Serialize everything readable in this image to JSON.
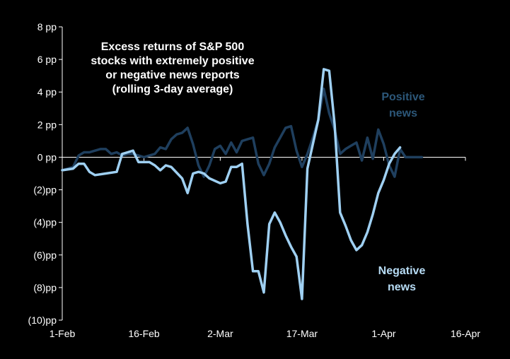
{
  "chart_data": {
    "type": "line",
    "title": [
      "Excess returns of S&P 500",
      "stocks with extremely positive",
      "or negative news reports",
      "(rolling 3-day average)"
    ],
    "xlabel": "",
    "ylabel": "",
    "x_ticks": [
      "1-Feb",
      "16-Feb",
      "2-Mar",
      "17-Mar",
      "1-Apr",
      "16-Apr"
    ],
    "x_tick_days": [
      0,
      15,
      29,
      44,
      59,
      74
    ],
    "xlim": [
      0,
      74
    ],
    "y_ticks": [
      {
        "value": 8,
        "label": "8 pp"
      },
      {
        "value": 6,
        "label": "6 pp"
      },
      {
        "value": 4,
        "label": "4 pp"
      },
      {
        "value": 2,
        "label": "2 pp"
      },
      {
        "value": 0,
        "label": "0 pp"
      },
      {
        "value": -2,
        "label": "(2)pp"
      },
      {
        "value": -4,
        "label": "(4)pp"
      },
      {
        "value": -6,
        "label": "(6)pp"
      },
      {
        "value": -8,
        "label": "(8)pp"
      },
      {
        "value": -10,
        "label": "(10)pp"
      }
    ],
    "ylim": [
      -10,
      8
    ],
    "series": [
      {
        "name": "Positive news",
        "label_lines": [
          "Positive",
          "news"
        ],
        "color": "#1f3f5e",
        "x": [
          0,
          2,
          3,
          4,
          5,
          6,
          7,
          8,
          9,
          10,
          11,
          12,
          13,
          14,
          15,
          16,
          17,
          18,
          19,
          20,
          21,
          22,
          23,
          24,
          25,
          26,
          27,
          28,
          29,
          30,
          31,
          32,
          33,
          34,
          35,
          36,
          37,
          38,
          39,
          40,
          41,
          42,
          43,
          44,
          45,
          46,
          47,
          48,
          49,
          50,
          51,
          52,
          53,
          54,
          55,
          56,
          57,
          58,
          59,
          60,
          61,
          62,
          63,
          64,
          65,
          66
        ],
        "values": [
          -0.8,
          -0.6,
          0.1,
          0.3,
          0.3,
          0.4,
          0.5,
          0.5,
          0.2,
          0.3,
          0.1,
          0.2,
          0.2,
          0.1,
          0.0,
          0.1,
          0.2,
          0.6,
          0.5,
          1.1,
          1.4,
          1.5,
          1.8,
          0.8,
          -0.5,
          -1.2,
          -0.5,
          0.5,
          0.7,
          0.2,
          0.9,
          0.3,
          1.0,
          1.1,
          1.2,
          -0.4,
          -1.1,
          -0.4,
          0.6,
          1.2,
          1.8,
          1.9,
          0.4,
          -0.6,
          0.2,
          1.2,
          2.3,
          4.2,
          2.7,
          1.7,
          0.2,
          0.5,
          0.7,
          0.9,
          -0.2,
          1.2,
          -0.1,
          1.7,
          0.8,
          -0.5,
          -1.2,
          0.5,
          0.0,
          0.0,
          0.0,
          0.0
        ]
      },
      {
        "name": "Negative news",
        "label_lines": [
          "Negative",
          "news"
        ],
        "color": "#9fd0f2",
        "x": [
          0,
          2,
          3,
          4,
          5,
          6,
          8,
          10,
          11,
          12,
          13,
          14,
          16,
          17,
          18,
          19,
          20,
          22,
          23,
          24,
          25,
          26,
          27,
          29,
          30,
          31,
          32,
          33,
          34,
          35,
          36,
          37,
          38,
          39,
          40,
          41,
          42,
          43,
          44,
          45,
          47,
          48,
          49,
          50,
          51,
          52,
          53,
          54,
          55,
          56,
          57,
          58,
          59,
          60,
          61,
          62
        ],
        "values": [
          -0.8,
          -0.7,
          -0.4,
          -0.4,
          -0.9,
          -1.1,
          -1.0,
          -0.9,
          0.2,
          0.3,
          0.4,
          -0.3,
          -0.3,
          -0.5,
          -0.8,
          -0.5,
          -0.6,
          -1.3,
          -2.2,
          -1.0,
          -0.9,
          -1.0,
          -1.3,
          -1.6,
          -1.5,
          -0.6,
          -0.6,
          -0.4,
          -4.1,
          -7.0,
          -7.0,
          -8.3,
          -4.1,
          -3.4,
          -4.0,
          -4.8,
          -5.5,
          -6.1,
          -8.7,
          -0.7,
          2.3,
          5.4,
          5.3,
          2.0,
          -3.4,
          -4.2,
          -5.1,
          -5.7,
          -5.4,
          -4.6,
          -3.5,
          -2.2,
          -1.4,
          -0.4,
          0.2,
          0.6
        ]
      }
    ]
  }
}
